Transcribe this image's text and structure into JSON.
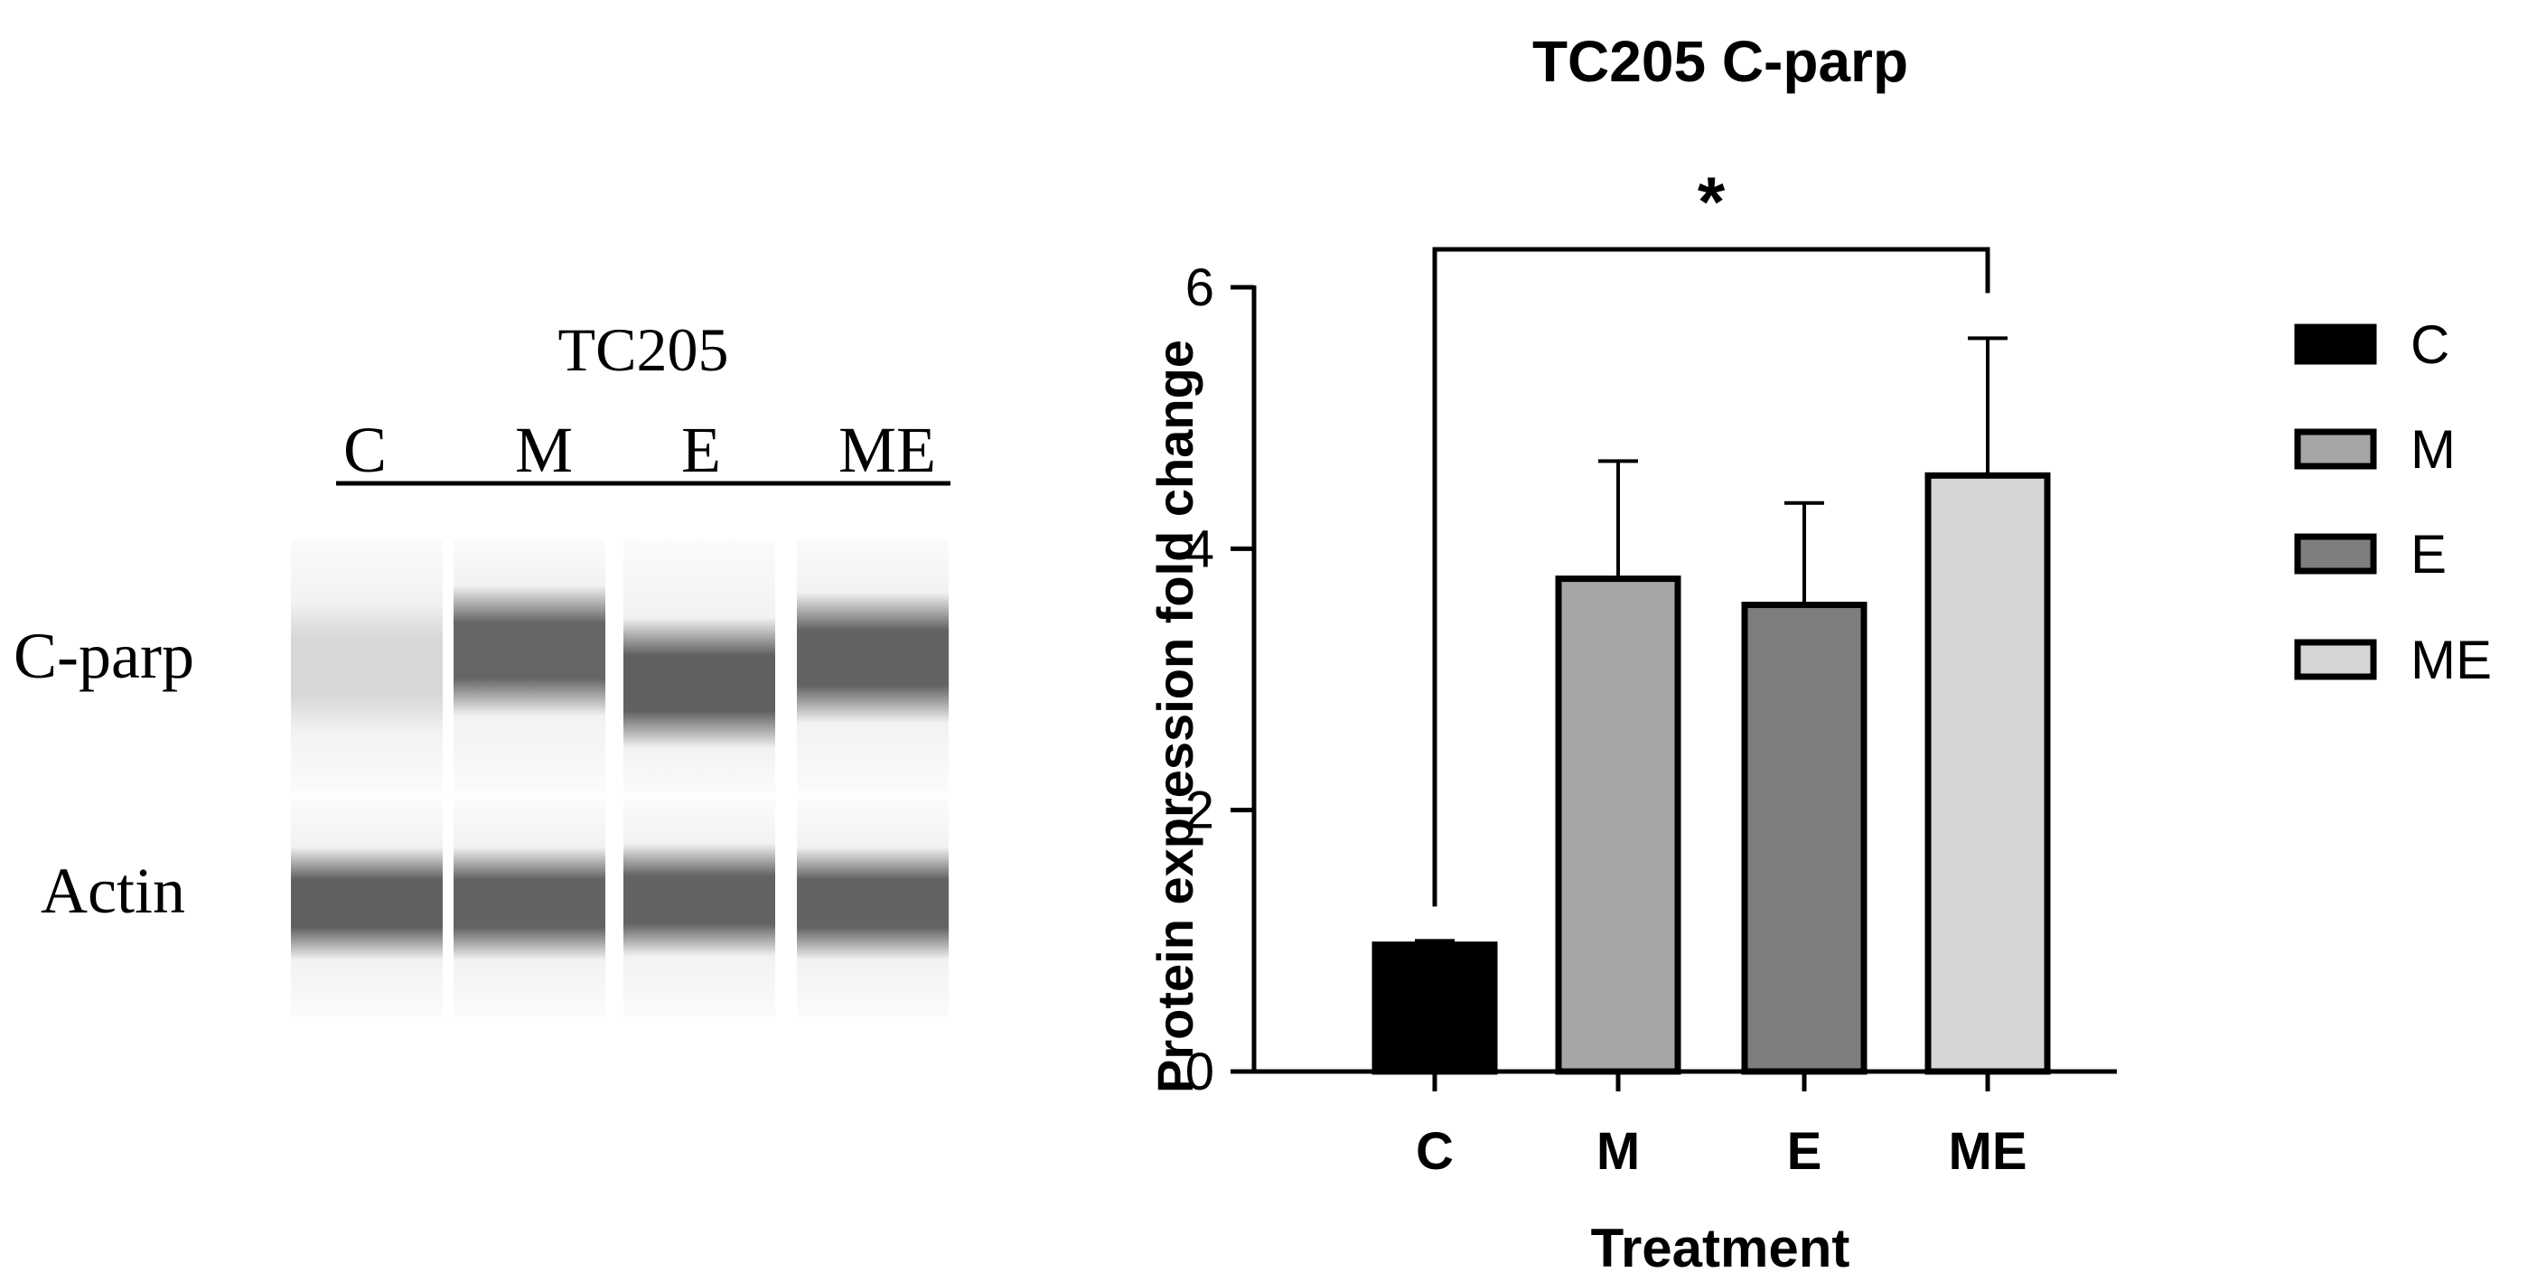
{
  "blot": {
    "cell_line": "TC205",
    "lanes": [
      "C",
      "M",
      "E",
      "ME"
    ],
    "rows": [
      {
        "label": "C-parp",
        "intensities": [
          0.12,
          0.78,
          0.82,
          0.8
        ]
      },
      {
        "label": "Actin",
        "intensities": [
          0.82,
          0.8,
          0.8,
          0.8
        ]
      }
    ]
  },
  "chart_data": {
    "type": "bar",
    "title": "TC205 C-parp",
    "xlabel": "Treatment",
    "ylabel": "Protein expression fold change",
    "categories": [
      "C",
      "M",
      "E",
      "ME"
    ],
    "values": [
      0.97,
      3.77,
      3.57,
      4.56
    ],
    "errors": [
      0.03,
      0.9,
      0.78,
      1.05
    ],
    "ylim": [
      0,
      6
    ],
    "yticks": [
      "0",
      "2",
      "4",
      "6"
    ],
    "colors": [
      "#000000",
      "#a6a6a9",
      "#7e7e80",
      "#d6d6d6"
    ],
    "legend": {
      "position": "right",
      "entries": [
        "C",
        "M",
        "E",
        "ME"
      ]
    },
    "significance": {
      "from": "C",
      "to": "ME",
      "label": "*"
    },
    "grid": false
  }
}
